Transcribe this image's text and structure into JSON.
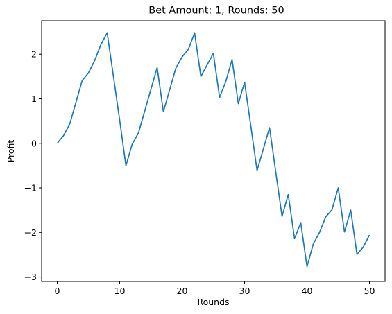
{
  "chart_data": {
    "type": "line",
    "title": "Bet Amount: 1, Rounds: 50",
    "xlabel": "Rounds",
    "ylabel": "Profit",
    "xlim": [
      -2.5,
      52.5
    ],
    "ylim": [
      -3.1,
      2.75
    ],
    "xticks": [
      0,
      10,
      20,
      30,
      40,
      50
    ],
    "xtick_labels": [
      "0",
      "10",
      "20",
      "30",
      "40",
      "50"
    ],
    "yticks": [
      -3,
      -2,
      -1,
      0,
      1,
      2
    ],
    "ytick_labels": [
      "−3",
      "−2",
      "−1",
      "0",
      "1",
      "2"
    ],
    "grid": false,
    "color": "#1f77b4",
    "x": [
      0,
      1,
      2,
      3,
      4,
      5,
      6,
      7,
      8,
      9,
      10,
      11,
      12,
      13,
      14,
      15,
      16,
      17,
      18,
      19,
      20,
      21,
      22,
      23,
      24,
      25,
      26,
      27,
      28,
      29,
      30,
      31,
      32,
      33,
      34,
      35,
      36,
      37,
      38,
      39,
      40,
      41,
      42,
      43,
      44,
      45,
      46,
      47,
      48,
      49,
      50
    ],
    "y": [
      0,
      0.17,
      0.43,
      0.92,
      1.41,
      1.58,
      1.86,
      2.22,
      2.48,
      1.5,
      0.52,
      -0.5,
      -0.02,
      0.23,
      0.72,
      1.21,
      1.7,
      0.71,
      1.2,
      1.69,
      1.94,
      2.11,
      2.48,
      1.5,
      1.76,
      2.02,
      1.03,
      1.39,
      1.88,
      0.89,
      1.37,
      0.39,
      -0.61,
      -0.13,
      0.35,
      -0.65,
      -1.64,
      -1.15,
      -2.14,
      -1.78,
      -2.77,
      -2.26,
      -2.0,
      -1.65,
      -1.49,
      -1.0,
      -1.99,
      -1.5,
      -2.49,
      -2.33,
      -2.06
    ]
  }
}
